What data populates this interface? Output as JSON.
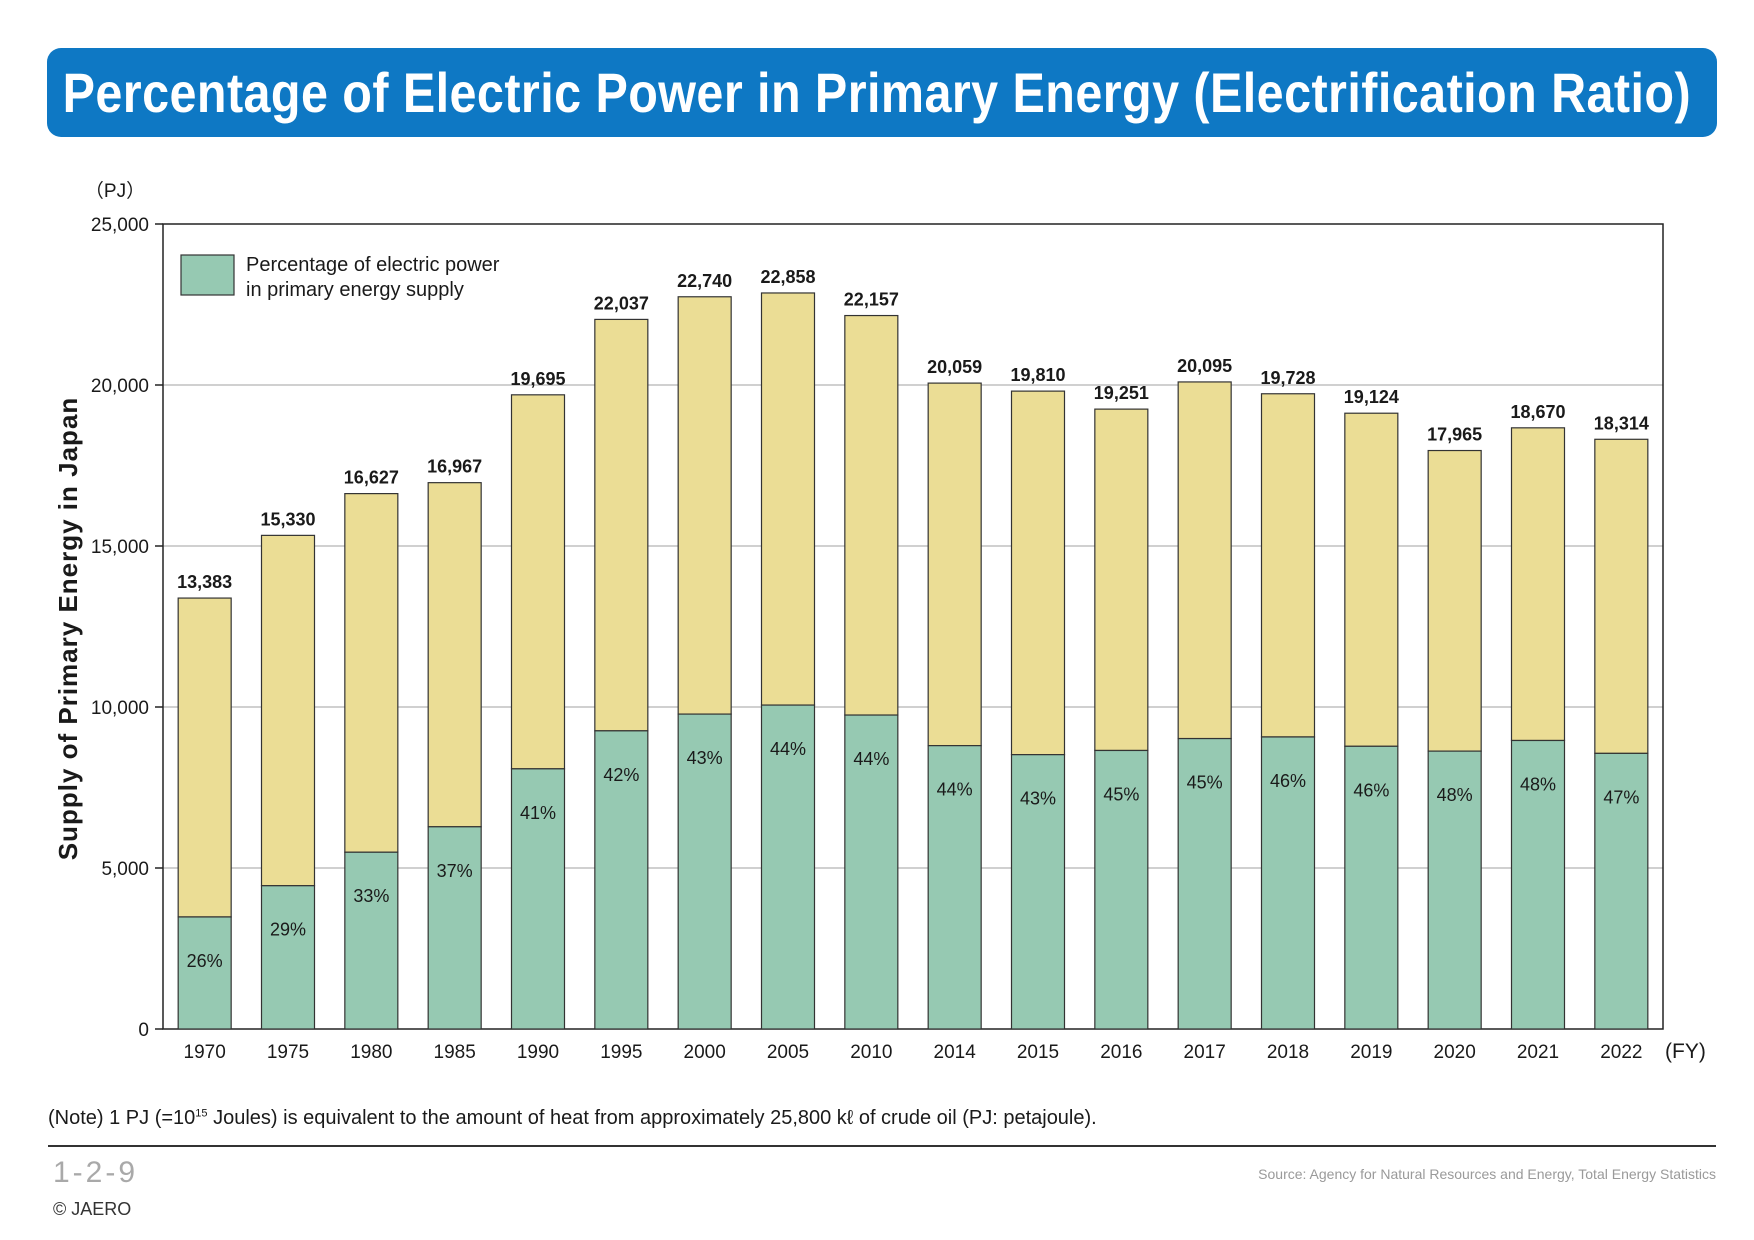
{
  "title": "Percentage of Electric Power in Primary Energy (Electrification Ratio)",
  "note": {
    "before": "(Note) 1 PJ (=10",
    "exponent": "15",
    "after": " Joules) is equivalent to the amount of heat from approximately 25,800 kℓ of crude oil (PJ: petajoule)."
  },
  "figure_number": "1-2-9",
  "source": "Source: Agency for Natural Resources and Energy, Total Energy Statistics",
  "copyright": "© JAERO",
  "colors": {
    "title_bg": "#0e78c4",
    "electric": "#96c9b2",
    "total": "#ebdd95",
    "grid": "#b4b4b4"
  },
  "chart_data": {
    "type": "bar",
    "stacked": true,
    "ylabel": "Supply of Primary Energy in Japan",
    "yunit": "（PJ）",
    "xunit": "(FY)",
    "ylim": [
      0,
      25000
    ],
    "yticks": [
      0,
      5000,
      10000,
      15000,
      20000,
      25000
    ],
    "ytick_labels": [
      "0",
      "5,000",
      "10,000",
      "15,000",
      "20,000",
      "25,000"
    ],
    "grid": true,
    "legend": {
      "label_line1": "Percentage of electric power",
      "label_line2": "in primary energy supply",
      "position": "top-left"
    },
    "categories": [
      "1970",
      "1975",
      "1980",
      "1985",
      "1990",
      "1995",
      "2000",
      "2005",
      "2010",
      "2014",
      "2015",
      "2016",
      "2017",
      "2018",
      "2019",
      "2020",
      "2021",
      "2022"
    ],
    "totals": [
      13383,
      15330,
      16627,
      16967,
      19695,
      22037,
      22740,
      22858,
      22157,
      20059,
      19810,
      19251,
      20095,
      19728,
      19124,
      17965,
      18670,
      18314
    ],
    "total_labels": [
      "13,383",
      "15,330",
      "16,627",
      "16,967",
      "19,695",
      "22,037",
      "22,740",
      "22,858",
      "22,157",
      "20,059",
      "19,810",
      "19,251",
      "20,095",
      "19,728",
      "19,124",
      "17,965",
      "18,670",
      "18,314"
    ],
    "electric_values": [
      3480,
      4450,
      5490,
      6280,
      8080,
      9260,
      9780,
      10060,
      9750,
      8800,
      8520,
      8650,
      9020,
      9070,
      8780,
      8630,
      8960,
      8560
    ],
    "electric_percent_labels": [
      "26%",
      "29%",
      "33%",
      "37%",
      "41%",
      "42%",
      "43%",
      "44%",
      "44%",
      "44%",
      "43%",
      "45%",
      "45%",
      "46%",
      "46%",
      "48%",
      "48%",
      "47%"
    ]
  }
}
